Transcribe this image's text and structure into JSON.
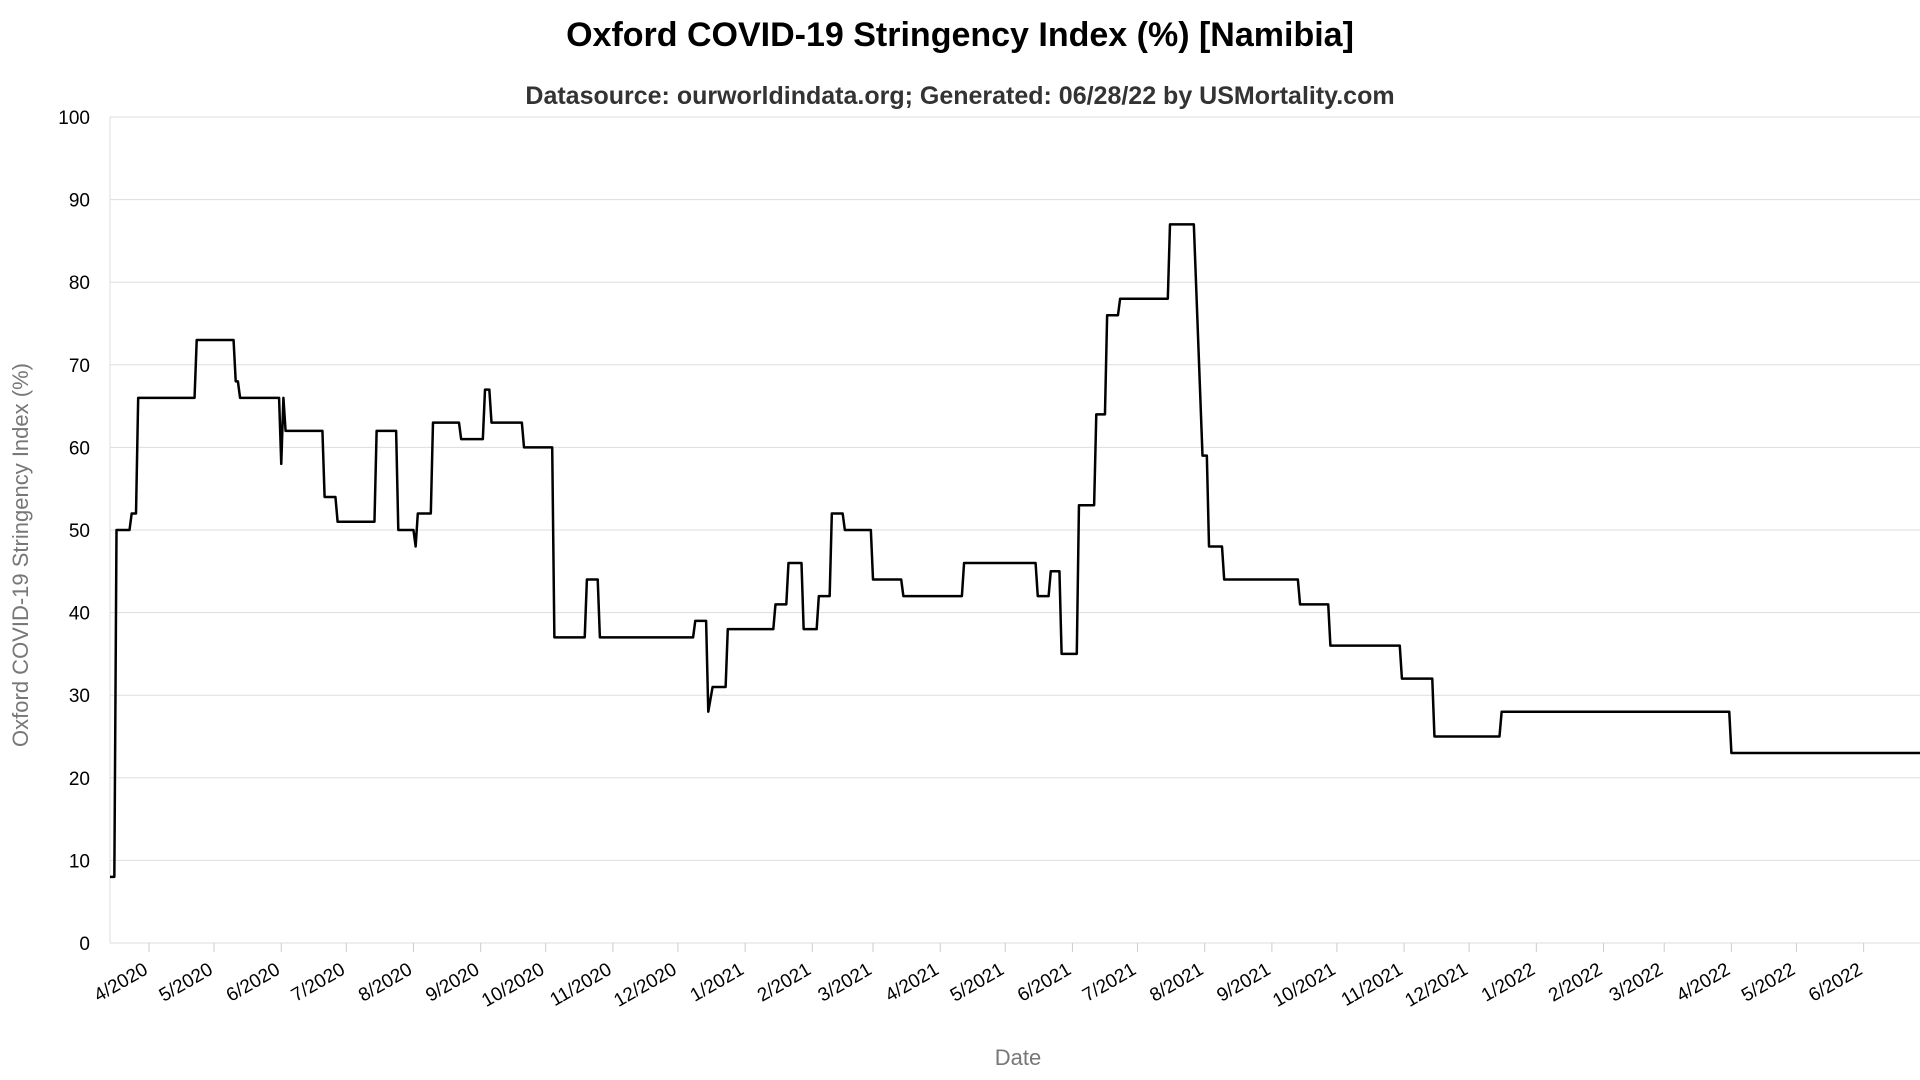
{
  "chart_data": {
    "type": "line",
    "title": "Oxford COVID-19 Stringency Index (%) [Namibia]",
    "subtitle": "Datasource: ourworldindata.org; Generated: 06/28/22 by USMortality.com",
    "xlabel": "Date",
    "ylabel": "Oxford COVID-19 Stringency Index (%)",
    "ylim": [
      0,
      100
    ],
    "xlim": [
      "2020-03-14",
      "2022-06-27"
    ],
    "yticks": [
      0,
      10,
      20,
      30,
      40,
      50,
      60,
      70,
      80,
      90,
      100
    ],
    "xtick_labels": [
      "4/2020",
      "5/2020",
      "6/2020",
      "7/2020",
      "8/2020",
      "9/2020",
      "10/2020",
      "11/2020",
      "12/2020",
      "1/2021",
      "2/2021",
      "3/2021",
      "4/2021",
      "5/2021",
      "6/2021",
      "7/2021",
      "8/2021",
      "9/2021",
      "10/2021",
      "11/2021",
      "12/2021",
      "1/2022",
      "2/2022",
      "3/2022",
      "4/2022",
      "5/2022",
      "6/2022"
    ],
    "xtick_dates": [
      "2020-04-01",
      "2020-05-01",
      "2020-06-01",
      "2020-07-01",
      "2020-08-01",
      "2020-09-01",
      "2020-10-01",
      "2020-11-01",
      "2020-12-01",
      "2021-01-01",
      "2021-02-01",
      "2021-03-01",
      "2021-04-01",
      "2021-05-01",
      "2021-06-01",
      "2021-07-01",
      "2021-08-01",
      "2021-09-01",
      "2021-10-01",
      "2021-11-01",
      "2021-12-01",
      "2022-01-01",
      "2022-02-01",
      "2022-03-01",
      "2022-04-01",
      "2022-05-01",
      "2022-06-01"
    ],
    "grid": true,
    "legend": "none",
    "colors": {
      "line": "#000000",
      "grid": "#dddddd",
      "axis_title": "#777777"
    },
    "series": [
      {
        "values": [
          [
            "2020-03-14",
            8
          ],
          [
            "2020-03-16",
            8
          ],
          [
            "2020-03-17",
            50
          ],
          [
            "2020-03-23",
            50
          ],
          [
            "2020-03-24",
            52
          ],
          [
            "2020-03-26",
            52
          ],
          [
            "2020-03-27",
            66
          ],
          [
            "2020-04-22",
            66
          ],
          [
            "2020-04-23",
            73
          ],
          [
            "2020-05-10",
            73
          ],
          [
            "2020-05-11",
            68
          ],
          [
            "2020-05-12",
            68
          ],
          [
            "2020-05-13",
            66
          ],
          [
            "2020-05-31",
            66
          ],
          [
            "2020-06-01",
            58
          ],
          [
            "2020-06-02",
            66
          ],
          [
            "2020-06-03",
            62
          ],
          [
            "2020-06-20",
            62
          ],
          [
            "2020-06-21",
            54
          ],
          [
            "2020-06-26",
            54
          ],
          [
            "2020-06-27",
            51
          ],
          [
            "2020-07-14",
            51
          ],
          [
            "2020-07-15",
            62
          ],
          [
            "2020-07-24",
            62
          ],
          [
            "2020-07-25",
            50
          ],
          [
            "2020-08-01",
            50
          ],
          [
            "2020-08-02",
            48
          ],
          [
            "2020-08-03",
            52
          ],
          [
            "2020-08-09",
            52
          ],
          [
            "2020-08-10",
            63
          ],
          [
            "2020-08-22",
            63
          ],
          [
            "2020-08-23",
            61
          ],
          [
            "2020-09-02",
            61
          ],
          [
            "2020-09-03",
            67
          ],
          [
            "2020-09-05",
            67
          ],
          [
            "2020-09-06",
            63
          ],
          [
            "2020-09-20",
            63
          ],
          [
            "2020-09-21",
            60
          ],
          [
            "2020-10-04",
            60
          ],
          [
            "2020-10-05",
            37
          ],
          [
            "2020-10-19",
            37
          ],
          [
            "2020-10-20",
            44
          ],
          [
            "2020-10-25",
            44
          ],
          [
            "2020-10-26",
            37
          ],
          [
            "2020-12-08",
            37
          ],
          [
            "2020-12-09",
            39
          ],
          [
            "2020-12-14",
            39
          ],
          [
            "2020-12-15",
            28
          ],
          [
            "2020-12-17",
            31
          ],
          [
            "2020-12-23",
            31
          ],
          [
            "2020-12-24",
            38
          ],
          [
            "2021-01-14",
            38
          ],
          [
            "2021-01-15",
            41
          ],
          [
            "2021-01-20",
            41
          ],
          [
            "2021-01-21",
            46
          ],
          [
            "2021-01-27",
            46
          ],
          [
            "2021-01-28",
            38
          ],
          [
            "2021-02-03",
            38
          ],
          [
            "2021-02-04",
            42
          ],
          [
            "2021-02-09",
            42
          ],
          [
            "2021-02-10",
            52
          ],
          [
            "2021-02-15",
            52
          ],
          [
            "2021-02-16",
            50
          ],
          [
            "2021-02-28",
            50
          ],
          [
            "2021-03-01",
            44
          ],
          [
            "2021-03-14",
            44
          ],
          [
            "2021-03-15",
            42
          ],
          [
            "2021-04-11",
            42
          ],
          [
            "2021-04-12",
            46
          ],
          [
            "2021-05-15",
            46
          ],
          [
            "2021-05-16",
            42
          ],
          [
            "2021-05-21",
            42
          ],
          [
            "2021-05-22",
            45
          ],
          [
            "2021-05-26",
            45
          ],
          [
            "2021-05-27",
            35
          ],
          [
            "2021-06-03",
            35
          ],
          [
            "2021-06-04",
            53
          ],
          [
            "2021-06-11",
            53
          ],
          [
            "2021-06-12",
            64
          ],
          [
            "2021-06-16",
            64
          ],
          [
            "2021-06-17",
            76
          ],
          [
            "2021-06-22",
            76
          ],
          [
            "2021-06-23",
            78
          ],
          [
            "2021-07-15",
            78
          ],
          [
            "2021-07-16",
            87
          ],
          [
            "2021-07-27",
            87
          ],
          [
            "2021-07-31",
            59
          ],
          [
            "2021-08-02",
            59
          ],
          [
            "2021-08-03",
            48
          ],
          [
            "2021-08-09",
            48
          ],
          [
            "2021-08-10",
            44
          ],
          [
            "2021-09-13",
            44
          ],
          [
            "2021-09-14",
            41
          ],
          [
            "2021-09-27",
            41
          ],
          [
            "2021-09-28",
            36
          ],
          [
            "2021-10-30",
            36
          ],
          [
            "2021-10-31",
            32
          ],
          [
            "2021-11-14",
            32
          ],
          [
            "2021-11-15",
            25
          ],
          [
            "2021-12-15",
            25
          ],
          [
            "2021-12-16",
            28
          ],
          [
            "2022-03-31",
            28
          ],
          [
            "2022-04-01",
            23
          ],
          [
            "2022-06-27",
            23
          ]
        ]
      }
    ]
  }
}
